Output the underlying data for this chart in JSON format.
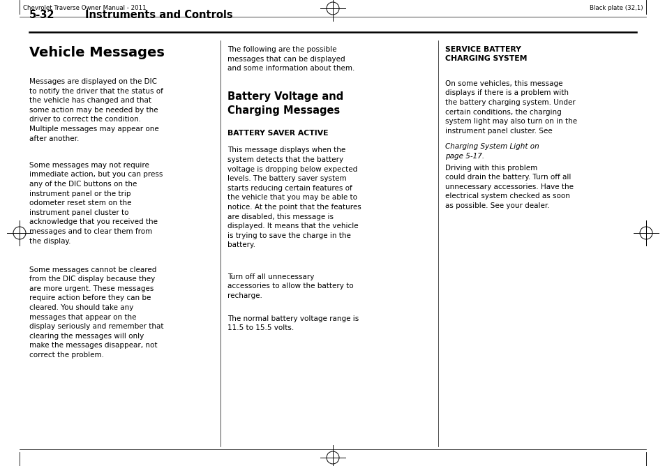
{
  "bg_color": "#ffffff",
  "page_width": 9.54,
  "page_height": 6.68,
  "dpi": 100,
  "header_left": "Chevrolet Traverse Owner Manual - 2011",
  "header_right": "Black plate (32,1)",
  "col1_heading": "Vehicle Messages",
  "col1_para1": "Messages are displayed on the DIC\nto notify the driver that the status of\nthe vehicle has changed and that\nsome action may be needed by the\ndriver to correct the condition.\nMultiple messages may appear one\nafter another.",
  "col1_para2": "Some messages may not require\nimmediate action, but you can press\nany of the DIC buttons on the\ninstrument panel or the trip\nodometer reset stem on the\ninstrument panel cluster to\nacknowledge that you received the\nmessages and to clear them from\nthe display.",
  "col1_para3": "Some messages cannot be cleared\nfrom the DIC display because they\nare more urgent. These messages\nrequire action before they can be\ncleared. You should take any\nmessages that appear on the\ndisplay seriously and remember that\nclearing the messages will only\nmake the messages disappear, not\ncorrect the problem.",
  "col2_intro": "The following are the possible\nmessages that can be displayed\nand some information about them.",
  "col2_heading": "Battery Voltage and\nCharging Messages",
  "col2_subheading": "BATTERY SAVER ACTIVE",
  "col2_body1": "This message displays when the\nsystem detects that the battery\nvoltage is dropping below expected\nlevels. The battery saver system\nstarts reducing certain features of\nthe vehicle that you may be able to\nnotice. At the point that the features\nare disabled, this message is\ndisplayed. It means that the vehicle\nis trying to save the charge in the\nbattery.",
  "col2_body2": "Turn off all unnecessary\naccessories to allow the battery to\nrecharge.",
  "col2_body3": "The normal battery voltage range is\n11.5 to 15.5 volts.",
  "col3_heading": "SERVICE BATTERY\nCHARGING SYSTEM",
  "col3_before_italic": "On some vehicles, this message\ndisplays if there is a problem with\nthe battery charging system. Under\ncertain conditions, the charging\nsystem light may also turn on in the\ninstrument panel cluster. See",
  "col3_italic": "Charging System Light on\npage 5-17.",
  "col3_after_italic": "Driving with this problem\ncould drain the battery. Turn off all\nunnecessary accessories. Have the\nelectrical system checked as soon\nas possible. See your dealer.",
  "section_num": "5-32",
  "section_name": "Instruments and Controls"
}
